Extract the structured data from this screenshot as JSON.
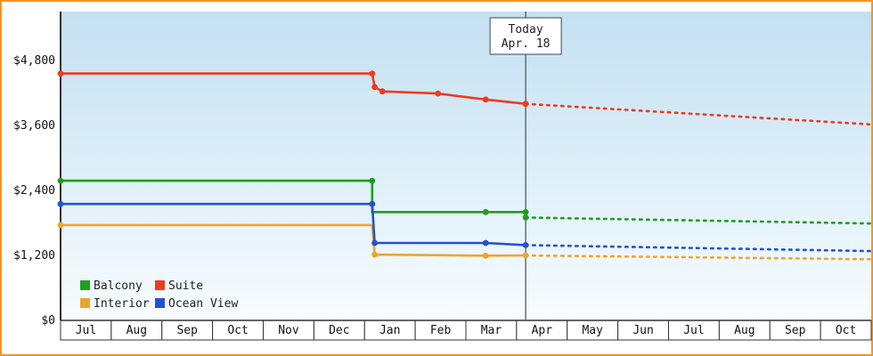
{
  "frame": {
    "border_color": "#f7941d",
    "background_top": "#c3e0f1",
    "background_bottom": "#f7fcff"
  },
  "today_marker": {
    "line1": "Today",
    "line2": "Apr. 18",
    "month_position": 9.18
  },
  "chart_data": {
    "type": "line",
    "title": "",
    "grid": false,
    "legend_position": "bottom-left",
    "x_axis": {
      "unit": "month",
      "tick_labels": [
        "Jul",
        "Aug",
        "Sep",
        "Oct",
        "Nov",
        "Dec",
        "Jan",
        "Feb",
        "Mar",
        "Apr",
        "May",
        "Jun",
        "Jul",
        "Aug",
        "Sep",
        "Oct"
      ]
    },
    "y_axis": {
      "tick_labels": [
        "$0",
        "$1,200",
        "$2,400",
        "$3,600",
        "$4,800"
      ],
      "tick_values": [
        0,
        1200,
        2400,
        3600,
        4800
      ]
    },
    "series": [
      {
        "name": "Balcony",
        "color": "#1e9e1e",
        "solid": [
          [
            0,
            2580,
            1
          ],
          [
            6.15,
            2580,
            1
          ],
          [
            6.15,
            2000,
            0
          ],
          [
            8.39,
            2000,
            1
          ],
          [
            9.18,
            2000,
            1
          ],
          [
            9.18,
            1900,
            1
          ]
        ],
        "dotted": [
          [
            9.18,
            1900
          ],
          [
            16,
            1790
          ]
        ]
      },
      {
        "name": "Suite",
        "color": "#ef3b1d",
        "solid": [
          [
            0,
            4560,
            1
          ],
          [
            6.15,
            4560,
            1
          ],
          [
            6.2,
            4310,
            1
          ],
          [
            6.35,
            4230,
            1
          ],
          [
            7.45,
            4190,
            1
          ],
          [
            8.39,
            4080,
            1
          ],
          [
            9.18,
            4000,
            1
          ]
        ],
        "dotted": [
          [
            9.18,
            4000
          ],
          [
            16,
            3620
          ]
        ]
      },
      {
        "name": "Interior",
        "color": "#efa42d",
        "solid": [
          [
            0,
            1760,
            1
          ],
          [
            6.15,
            1760,
            0
          ],
          [
            6.2,
            1215,
            1
          ],
          [
            8.39,
            1195,
            1
          ],
          [
            9.18,
            1200,
            1
          ]
        ],
        "dotted": [
          [
            9.18,
            1200
          ],
          [
            16,
            1130
          ]
        ]
      },
      {
        "name": "Ocean View",
        "color": "#2351d3",
        "solid": [
          [
            0,
            2150,
            1
          ],
          [
            6.15,
            2150,
            1
          ],
          [
            6.2,
            1430,
            1
          ],
          [
            8.39,
            1430,
            1
          ],
          [
            9.18,
            1390,
            1
          ]
        ],
        "dotted": [
          [
            9.18,
            1390
          ],
          [
            16,
            1280
          ]
        ]
      }
    ]
  }
}
